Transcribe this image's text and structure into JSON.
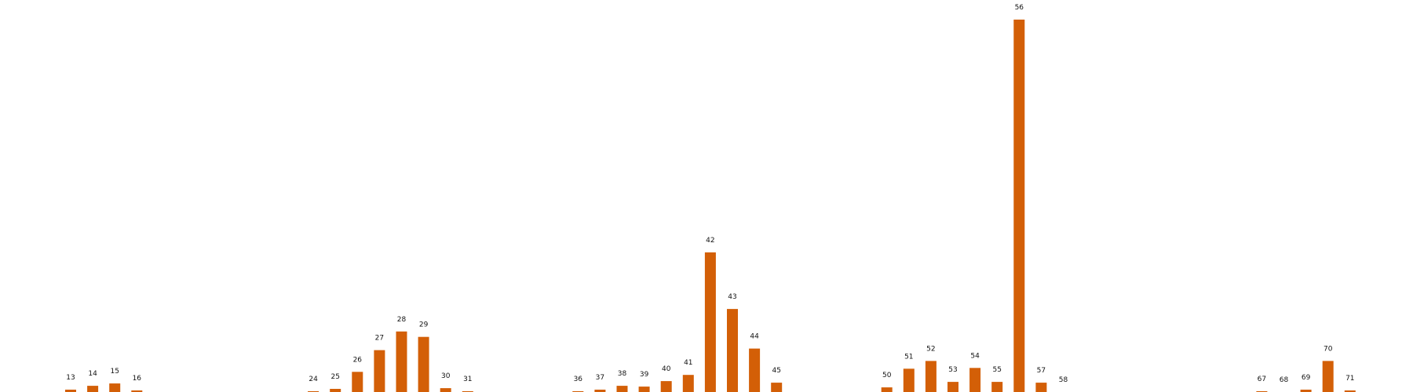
{
  "colors": {
    "bar": "#d35f07",
    "background": "#ffffff"
  },
  "chart_data": {
    "type": "bar",
    "title": "",
    "xlabel": "",
    "ylabel": "",
    "grid": false,
    "axes_visible": false,
    "x_range": [
      0,
      80
    ],
    "ylim": [
      0,
      480
    ],
    "labels_show_category": true,
    "categories": [
      13,
      14,
      15,
      16,
      24,
      25,
      26,
      27,
      28,
      29,
      30,
      31,
      36,
      37,
      38,
      39,
      40,
      41,
      42,
      43,
      44,
      45,
      50,
      51,
      52,
      53,
      54,
      55,
      56,
      57,
      58,
      67,
      68,
      69,
      70,
      71
    ],
    "values": [
      3,
      8,
      11,
      2,
      1,
      4,
      26,
      54,
      78,
      71,
      5,
      1,
      1,
      3,
      8,
      7,
      14,
      22,
      180,
      107,
      56,
      12,
      6,
      30,
      40,
      13,
      31,
      13,
      480,
      12,
      0,
      1,
      0,
      3,
      40,
      2
    ]
  }
}
